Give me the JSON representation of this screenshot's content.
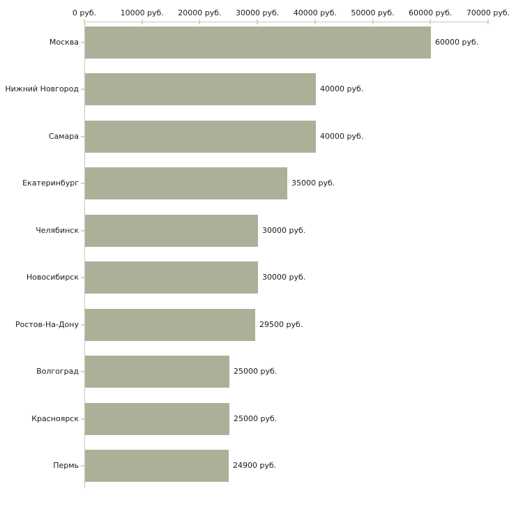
{
  "chart_data": {
    "type": "bar",
    "orientation": "horizontal",
    "title": "",
    "xlabel": "",
    "ylabel": "",
    "unit": "руб.",
    "categories": [
      "Москва",
      "Нижний Новгород",
      "Самара",
      "Екатеринбург",
      "Челябинск",
      "Новосибирск",
      "Ростов-На-Дону",
      "Волгоград",
      "Красноярск",
      "Пермь"
    ],
    "values": [
      60000,
      40000,
      40000,
      35000,
      30000,
      30000,
      29500,
      25000,
      25000,
      24900
    ],
    "value_labels": [
      "60000 руб.",
      "40000 руб.",
      "40000 руб.",
      "35000 руб.",
      "30000 руб.",
      "30000 руб.",
      "29500 руб.",
      "25000 руб.",
      "25000 руб.",
      "24900 руб."
    ],
    "x_axis": {
      "position": "top",
      "xlim": [
        0,
        70000
      ],
      "tick_values": [
        0,
        10000,
        20000,
        30000,
        40000,
        50000,
        60000,
        70000
      ],
      "tick_labels": [
        "0 руб.",
        "10000 руб.",
        "20000 руб.",
        "30000 руб.",
        "40000 руб.",
        "50000 руб.",
        "60000 руб.",
        "70000 руб."
      ]
    },
    "grid": false,
    "legend": false,
    "colors": {
      "bar": "#abb198",
      "axis_line": "#c6c6c6",
      "tick_mark": "#d8d5aa",
      "text": "#1a1a1a",
      "background": "#ffffff"
    }
  }
}
